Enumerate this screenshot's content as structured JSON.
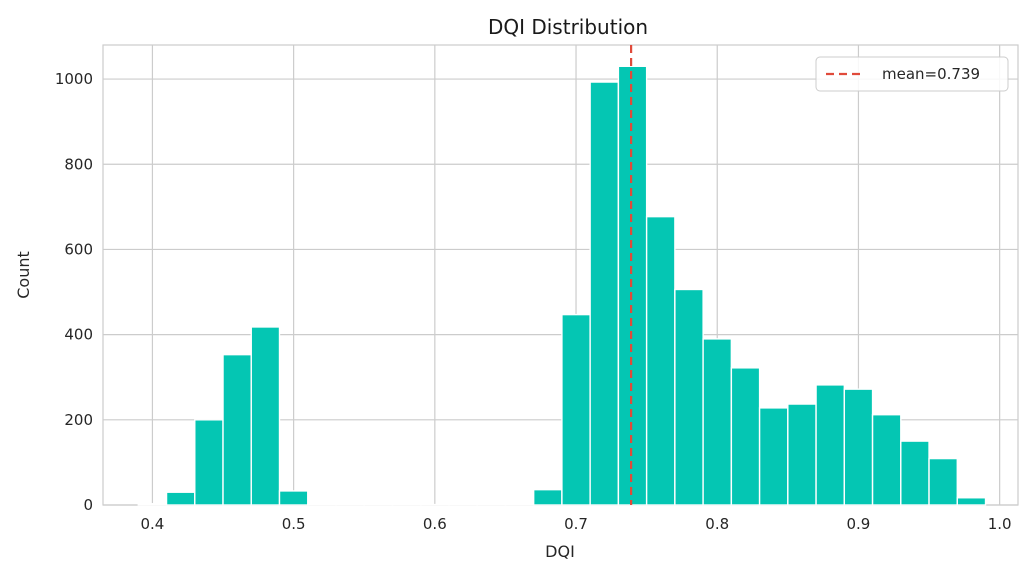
{
  "chart_data": {
    "type": "bar",
    "title": "DQI Distribution",
    "xlabel": "DQI",
    "ylabel": "Count",
    "xlim": [
      0.365,
      1.013
    ],
    "ylim": [
      0,
      1080
    ],
    "xticks": [
      "0.4",
      "0.5",
      "0.6",
      "0.7",
      "0.8",
      "0.9",
      "1.0"
    ],
    "xtick_values": [
      0.4,
      0.5,
      0.6,
      0.7,
      0.8,
      0.9,
      1.0
    ],
    "yticks": [
      "0",
      "200",
      "400",
      "600",
      "800",
      "1000"
    ],
    "ytick_values": [
      0,
      200,
      400,
      600,
      800,
      1000
    ],
    "grid": true,
    "bar_color": "#04c6b3",
    "mean_line": {
      "value": 0.739,
      "color": "#e04a3a",
      "label": "mean=0.739"
    },
    "legend_position": "top-right",
    "bins": [
      {
        "start": 0.39,
        "end": 0.41,
        "count": 3
      },
      {
        "start": 0.41,
        "end": 0.43,
        "count": 30
      },
      {
        "start": 0.43,
        "end": 0.45,
        "count": 200
      },
      {
        "start": 0.45,
        "end": 0.47,
        "count": 353
      },
      {
        "start": 0.47,
        "end": 0.49,
        "count": 418
      },
      {
        "start": 0.49,
        "end": 0.51,
        "count": 33
      },
      {
        "start": 0.51,
        "end": 0.53,
        "count": 1
      },
      {
        "start": 0.53,
        "end": 0.55,
        "count": 1
      },
      {
        "start": 0.55,
        "end": 0.57,
        "count": 1
      },
      {
        "start": 0.57,
        "end": 0.59,
        "count": 1
      },
      {
        "start": 0.59,
        "end": 0.61,
        "count": 1
      },
      {
        "start": 0.61,
        "end": 0.63,
        "count": 1
      },
      {
        "start": 0.63,
        "end": 0.65,
        "count": 1
      },
      {
        "start": 0.65,
        "end": 0.67,
        "count": 1
      },
      {
        "start": 0.67,
        "end": 0.69,
        "count": 36
      },
      {
        "start": 0.69,
        "end": 0.71,
        "count": 447
      },
      {
        "start": 0.71,
        "end": 0.73,
        "count": 993
      },
      {
        "start": 0.73,
        "end": 0.75,
        "count": 1030
      },
      {
        "start": 0.75,
        "end": 0.77,
        "count": 677
      },
      {
        "start": 0.77,
        "end": 0.79,
        "count": 506
      },
      {
        "start": 0.79,
        "end": 0.81,
        "count": 390
      },
      {
        "start": 0.81,
        "end": 0.83,
        "count": 322
      },
      {
        "start": 0.83,
        "end": 0.85,
        "count": 228
      },
      {
        "start": 0.85,
        "end": 0.87,
        "count": 237
      },
      {
        "start": 0.87,
        "end": 0.89,
        "count": 282
      },
      {
        "start": 0.89,
        "end": 0.91,
        "count": 272
      },
      {
        "start": 0.91,
        "end": 0.93,
        "count": 212
      },
      {
        "start": 0.93,
        "end": 0.95,
        "count": 150
      },
      {
        "start": 0.95,
        "end": 0.97,
        "count": 109
      },
      {
        "start": 0.97,
        "end": 0.99,
        "count": 17
      }
    ]
  }
}
